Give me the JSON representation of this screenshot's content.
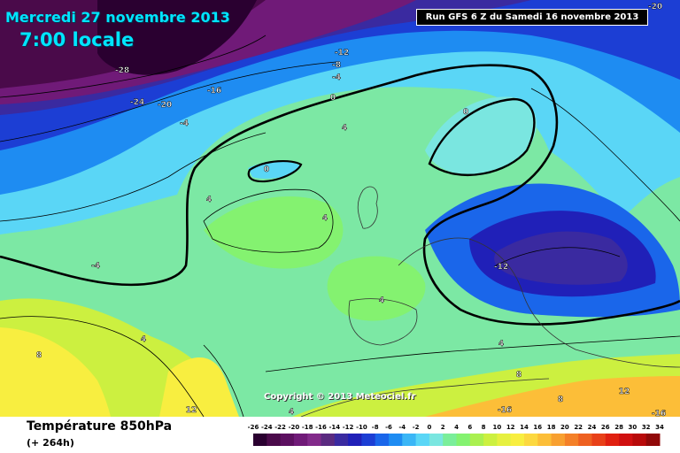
{
  "header": {
    "date": "Mercredi 27 novembre 2013",
    "time": "7:00 locale",
    "run": "Run GFS 6 Z du Samedi 16 novembre 2013"
  },
  "footer": {
    "variable": "Température 850hPa",
    "lead": "(+ 264h)"
  },
  "copyright": "Copyright © 2013 Meteociel.fr",
  "legend": {
    "values": [
      "-26",
      "-24",
      "-22",
      "-20",
      "-18",
      "-16",
      "-14",
      "-12",
      "-10",
      "-8",
      "-6",
      "-4",
      "-2",
      "0",
      "2",
      "4",
      "6",
      "8",
      "10",
      "12",
      "14",
      "16",
      "18",
      "20",
      "22",
      "24",
      "26",
      "28",
      "30",
      "32",
      "34"
    ],
    "colors": [
      "#2a0030",
      "#4a0a4a",
      "#5c1060",
      "#701a78",
      "#822a8a",
      "#5a2a80",
      "#3a2aa0",
      "#2020b8",
      "#1c3ed4",
      "#1a66ea",
      "#1e8cf2",
      "#3ab6f6",
      "#5ad6f6",
      "#7ae6e0",
      "#7aee9a",
      "#84f270",
      "#aaf050",
      "#ccf040",
      "#e6f040",
      "#f8ee40",
      "#fcd840",
      "#fcbe38",
      "#f8a030",
      "#f48028",
      "#ee6020",
      "#e84018",
      "#e02010",
      "#d01010",
      "#b80a0a",
      "#900808"
    ]
  },
  "contour_labels": [
    {
      "text": "-20"
    },
    {
      "text": "-28"
    },
    {
      "text": "-24"
    },
    {
      "text": "-20"
    },
    {
      "text": "-16"
    },
    {
      "text": "-12"
    },
    {
      "text": "-8"
    },
    {
      "text": "-4"
    },
    {
      "text": "0"
    },
    {
      "text": "-4"
    },
    {
      "text": "4"
    },
    {
      "text": "0"
    },
    {
      "text": "0"
    },
    {
      "text": "4"
    },
    {
      "text": "4"
    },
    {
      "text": "-4"
    },
    {
      "text": "-12"
    },
    {
      "text": "4"
    },
    {
      "text": "4"
    },
    {
      "text": "8"
    },
    {
      "text": "8"
    },
    {
      "text": "12"
    },
    {
      "text": "4"
    },
    {
      "text": "4"
    },
    {
      "text": "8"
    },
    {
      "text": "12"
    },
    {
      "text": "-16"
    },
    {
      "text": "-16"
    }
  ]
}
